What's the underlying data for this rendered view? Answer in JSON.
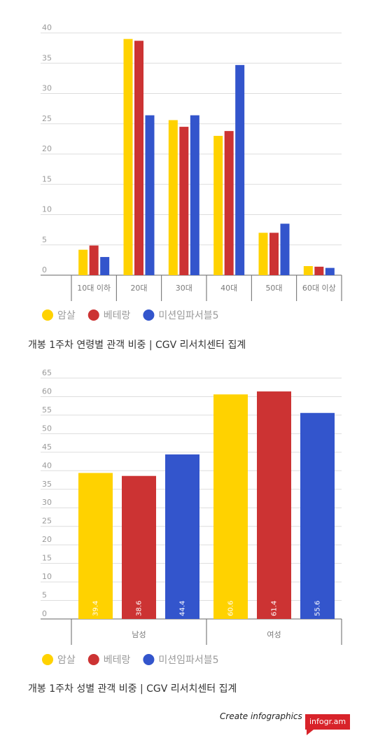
{
  "colors": {
    "amsal": "#ffd200",
    "veteran": "#cc3333",
    "mi5": "#3355cc"
  },
  "legend": [
    "암살",
    "베테랑",
    "미션임파서블5"
  ],
  "chart_data": [
    {
      "type": "bar",
      "title": "개봉 1주차 연령별 관객 비중 | CGV 리서치센터 집계",
      "categories": [
        "10대 이하",
        "20대",
        "30대",
        "40대",
        "50대",
        "60대 이상"
      ],
      "ylim": [
        0,
        40
      ],
      "yticks": [
        0,
        5,
        10,
        15,
        20,
        25,
        30,
        35,
        40
      ],
      "grid": true,
      "legend_position": "bottom-left",
      "series": [
        {
          "name": "암살",
          "values": [
            4.2,
            39.0,
            25.6,
            23.0,
            7.0,
            1.5
          ]
        },
        {
          "name": "베테랑",
          "values": [
            4.9,
            38.7,
            24.5,
            23.8,
            7.0,
            1.4
          ]
        },
        {
          "name": "미션임파서블5",
          "values": [
            3.0,
            26.4,
            26.4,
            34.7,
            8.5,
            1.2
          ]
        }
      ]
    },
    {
      "type": "bar",
      "title": "개봉 1주차 성별 관객 비중 | CGV 리서치센터 집계",
      "categories": [
        "남성",
        "여성"
      ],
      "ylim": [
        0,
        65
      ],
      "yticks": [
        0,
        5,
        10,
        15,
        20,
        25,
        30,
        35,
        40,
        45,
        50,
        55,
        60,
        65
      ],
      "grid": true,
      "legend_position": "bottom-left",
      "data_labels": true,
      "series": [
        {
          "name": "암살",
          "values": [
            39.4,
            60.6
          ]
        },
        {
          "name": "베테랑",
          "values": [
            38.6,
            61.4
          ]
        },
        {
          "name": "미션임파서블5",
          "values": [
            44.4,
            55.6
          ]
        }
      ]
    }
  ],
  "branding": {
    "text": "Create infographics",
    "logo": "infogr.am"
  }
}
